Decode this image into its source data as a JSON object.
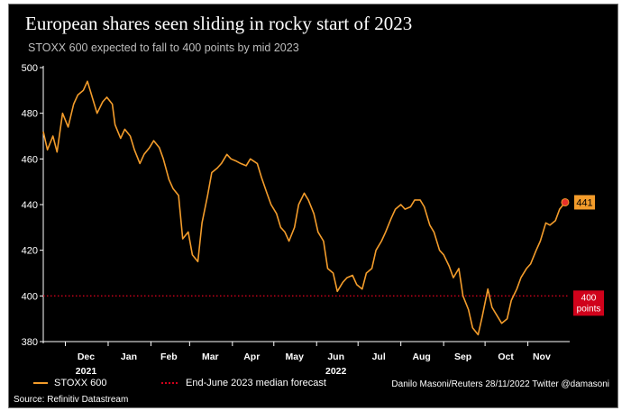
{
  "chart_data": {
    "type": "line",
    "title": "European shares seen sliding in rocky start of 2023",
    "subtitle": "STOXX 600 expected to fall to 400 points by mid 2023",
    "ylim": [
      380,
      500
    ],
    "y_ticks": [
      380,
      400,
      420,
      440,
      460,
      480,
      500
    ],
    "x_range": [
      "2021-11-15",
      "2022-11-30"
    ],
    "month_labels": [
      {
        "label": "Dec",
        "date": "2021-12-16"
      },
      {
        "label": "Jan",
        "date": "2022-01-16"
      },
      {
        "label": "Feb",
        "date": "2022-02-14"
      },
      {
        "label": "Mar",
        "date": "2022-03-16"
      },
      {
        "label": "Apr",
        "date": "2022-04-15"
      },
      {
        "label": "May",
        "date": "2022-05-16"
      },
      {
        "label": "Jun",
        "date": "2022-06-15"
      },
      {
        "label": "Jul",
        "date": "2022-07-16"
      },
      {
        "label": "Aug",
        "date": "2022-08-16"
      },
      {
        "label": "Sep",
        "date": "2022-09-15"
      },
      {
        "label": "Oct",
        "date": "2022-10-16"
      },
      {
        "label": "Nov",
        "date": "2022-11-11"
      }
    ],
    "year_labels": [
      {
        "label": "2021",
        "date": "2021-12-16"
      },
      {
        "label": "2022",
        "date": "2022-06-15"
      }
    ],
    "grid": false,
    "legend_position": "bottom-left",
    "series": [
      {
        "name": "STOXX 600",
        "color": "#f39c2b",
        "x": [
          "2021-11-15",
          "2021-11-18",
          "2021-11-22",
          "2021-11-25",
          "2021-11-29",
          "2021-12-01",
          "2021-12-03",
          "2021-12-07",
          "2021-12-10",
          "2021-12-14",
          "2021-12-17",
          "2021-12-21",
          "2021-12-24",
          "2021-12-28",
          "2021-12-31",
          "2022-01-04",
          "2022-01-06",
          "2022-01-10",
          "2022-01-13",
          "2022-01-17",
          "2022-01-20",
          "2022-01-24",
          "2022-01-27",
          "2022-01-31",
          "2022-02-03",
          "2022-02-07",
          "2022-02-10",
          "2022-02-14",
          "2022-02-17",
          "2022-02-21",
          "2022-02-24",
          "2022-02-28",
          "2022-03-03",
          "2022-03-07",
          "2022-03-10",
          "2022-03-14",
          "2022-03-17",
          "2022-03-21",
          "2022-03-24",
          "2022-03-28",
          "2022-03-31",
          "2022-04-04",
          "2022-04-07",
          "2022-04-11",
          "2022-04-14",
          "2022-04-19",
          "2022-04-22",
          "2022-04-26",
          "2022-04-29",
          "2022-05-03",
          "2022-05-06",
          "2022-05-09",
          "2022-05-12",
          "2022-05-16",
          "2022-05-19",
          "2022-05-23",
          "2022-05-26",
          "2022-05-30",
          "2022-06-02",
          "2022-06-06",
          "2022-06-09",
          "2022-06-13",
          "2022-06-16",
          "2022-06-20",
          "2022-06-23",
          "2022-06-27",
          "2022-06-30",
          "2022-07-04",
          "2022-07-07",
          "2022-07-11",
          "2022-07-14",
          "2022-07-18",
          "2022-07-21",
          "2022-07-25",
          "2022-07-28",
          "2022-08-01",
          "2022-08-04",
          "2022-08-08",
          "2022-08-11",
          "2022-08-15",
          "2022-08-18",
          "2022-08-22",
          "2022-08-25",
          "2022-08-29",
          "2022-09-01",
          "2022-09-05",
          "2022-09-08",
          "2022-09-12",
          "2022-09-15",
          "2022-09-19",
          "2022-09-22",
          "2022-09-26",
          "2022-09-29",
          "2022-10-03",
          "2022-10-06",
          "2022-10-10",
          "2022-10-13",
          "2022-10-17",
          "2022-10-20",
          "2022-10-24",
          "2022-10-27",
          "2022-10-31",
          "2022-11-03",
          "2022-11-07",
          "2022-11-10",
          "2022-11-14",
          "2022-11-17",
          "2022-11-21",
          "2022-11-24",
          "2022-11-28"
        ],
        "y": [
          472,
          464,
          470,
          463,
          480,
          477,
          474,
          484,
          488,
          490,
          494,
          486,
          480,
          485,
          487,
          484,
          475,
          469,
          473,
          470,
          464,
          458,
          462,
          465,
          468,
          465,
          460,
          451,
          447,
          444,
          425,
          428,
          418,
          415,
          432,
          444,
          454,
          456,
          458,
          462,
          460,
          459,
          458,
          457,
          460,
          458,
          452,
          445,
          440,
          436,
          430,
          428,
          424,
          430,
          440,
          445,
          442,
          436,
          428,
          424,
          412,
          410,
          402,
          406,
          408,
          409,
          405,
          403,
          410,
          412,
          420,
          424,
          428,
          434,
          438,
          440,
          438,
          439,
          442,
          442,
          439,
          431,
          428,
          420,
          418,
          413,
          408,
          412,
          400,
          394,
          386,
          383,
          391,
          403,
          395,
          391,
          388,
          390,
          398,
          403,
          408,
          412,
          414,
          420,
          424,
          432,
          431,
          433,
          438,
          441
        ]
      },
      {
        "name": "End-June 2023 median forecast",
        "color": "#d0021b",
        "value": 400,
        "style": "dotted"
      }
    ],
    "annotations": [
      {
        "text": "441",
        "value": 441,
        "color": "#f39c2b"
      },
      {
        "text": "400",
        "text2": "points",
        "value": 400,
        "color": "#d0021b"
      }
    ]
  },
  "credit": "Danilo Masoni/Reuters 28/11/2022 Twitter @damasoni",
  "source": "Source: Refinitiv Datastream",
  "colors": {
    "background": "#000000",
    "line": "#f39c2b",
    "forecast": "#d0021b"
  }
}
